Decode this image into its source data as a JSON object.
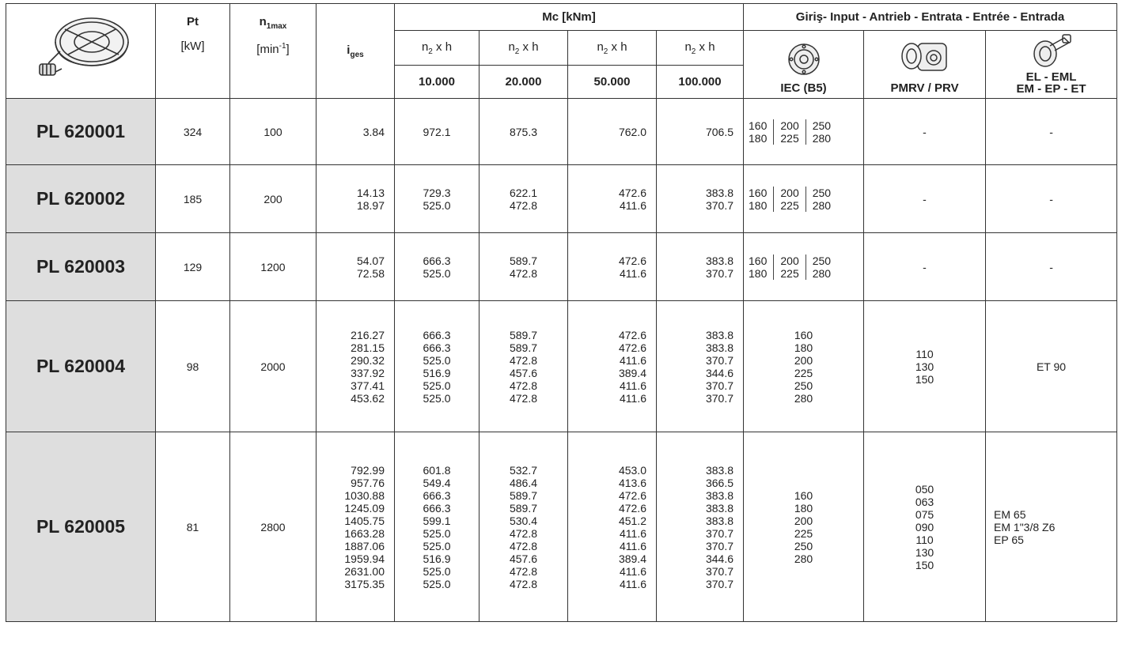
{
  "header": {
    "pt_label": "Pt",
    "pt_unit": "[kW]",
    "n1_label_main": "n",
    "n1_label_sub": "1max",
    "n1_unit_main": "[min",
    "n1_unit_sup": "-1",
    "n1_unit_close": "]",
    "iges_label_main": "i",
    "iges_label_sub": "ges",
    "mc_label": "Mc [kNm]",
    "n2xh_main": "n",
    "n2xh_sub": "2",
    "n2xh_rest": " x h",
    "hours": [
      "10.000",
      "20.000",
      "50.000",
      "100.000"
    ],
    "input_label": "Giriş- Input - Antrieb - Entrata - Entrée - Entrada",
    "iec_label": "IEC (B5)",
    "pmrv_label": "PMRV / PRV",
    "el_label": "EL - EML\nEM - EP - ET"
  },
  "icons": {
    "gearbox": "planetary-gearbox-icon",
    "iec": "iec-flange-icon",
    "pmrv": "worm-gearbox-icon",
    "el": "motor-adapter-icon"
  },
  "rows": [
    {
      "model": "PL 620001",
      "pt": "324",
      "n1max": "100",
      "iges": "3.84",
      "mc10": "972.1",
      "mc20": "875.3",
      "mc50": "762.0",
      "mc100": "706.5",
      "iec_cols": [
        "160\n180",
        "200\n225",
        "250\n280"
      ],
      "pmrv": "-",
      "el": "-"
    },
    {
      "model": "PL 620002",
      "pt": "185",
      "n1max": "200",
      "iges": "14.13\n18.97",
      "mc10": "729.3\n525.0",
      "mc20": "622.1\n472.8",
      "mc50": "472.6\n411.6",
      "mc100": "383.8\n370.7",
      "iec_cols": [
        "160\n180",
        "200\n225",
        "250\n280"
      ],
      "pmrv": "-",
      "el": "-"
    },
    {
      "model": "PL 620003",
      "pt": "129",
      "n1max": "1200",
      "iges": "54.07\n72.58",
      "mc10": "666.3\n525.0",
      "mc20": "589.7\n472.8",
      "mc50": "472.6\n411.6",
      "mc100": "383.8\n370.7",
      "iec_cols": [
        "160\n180",
        "200\n225",
        "250\n280"
      ],
      "pmrv": "-",
      "el": "-"
    },
    {
      "model": "PL 620004",
      "pt": "98",
      "n1max": "2000",
      "iges": "216.27\n281.15\n290.32\n337.92\n377.41\n453.62",
      "mc10": "666.3\n666.3\n525.0\n516.9\n525.0\n525.0",
      "mc20": "589.7\n589.7\n472.8\n457.6\n472.8\n472.8",
      "mc50": "472.6\n472.6\n411.6\n389.4\n411.6\n411.6",
      "mc100": "383.8\n383.8\n370.7\n344.6\n370.7\n370.7",
      "iec_list": "160\n180\n200\n225\n250\n280",
      "pmrv": "110\n130\n150",
      "el": "ET 90"
    },
    {
      "model": "PL 620005",
      "pt": "81",
      "n1max": "2800",
      "iges": "792.99\n957.76\n1030.88\n1245.09\n1405.75\n1663.28\n1887.06\n1959.94\n2631.00\n3175.35",
      "mc10": "601.8\n549.4\n666.3\n666.3\n599.1\n525.0\n525.0\n516.9\n525.0\n525.0",
      "mc20": "532.7\n486.4\n589.7\n589.7\n530.4\n472.8\n472.8\n457.6\n472.8\n472.8",
      "mc50": "453.0\n413.6\n472.6\n472.6\n451.2\n411.6\n411.6\n389.4\n411.6\n411.6",
      "mc100": "383.8\n366.5\n383.8\n383.8\n383.8\n370.7\n370.7\n344.6\n370.7\n370.7",
      "iec_list": "160\n180\n200\n225\n250\n280",
      "pmrv": "050\n063\n075\n090\n110\n130\n150",
      "el": "EM 65\nEM 1\"3/8 Z6\nEP 65"
    }
  ]
}
